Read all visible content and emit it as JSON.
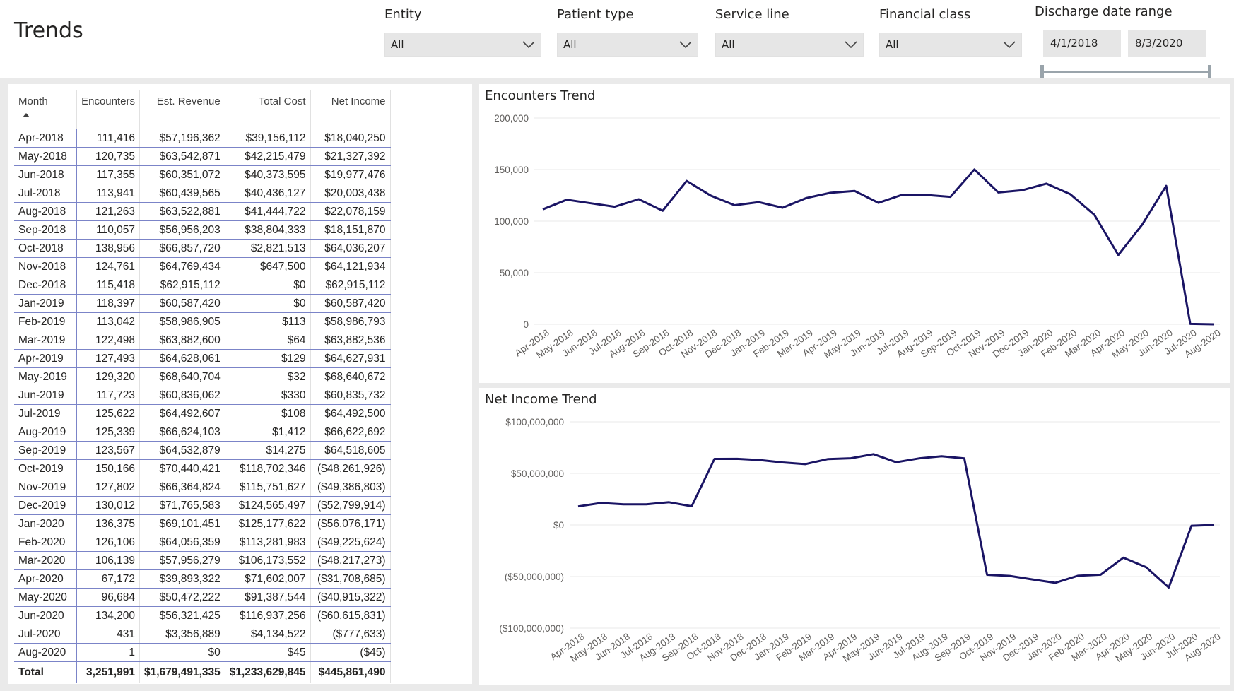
{
  "page": {
    "title": "Trends"
  },
  "filters": {
    "entity": {
      "label": "Entity",
      "value": "All"
    },
    "patient_type": {
      "label": "Patient type",
      "value": "All"
    },
    "service_line": {
      "label": "Service line",
      "value": "All"
    },
    "financial_class": {
      "label": "Financial class",
      "value": "All"
    },
    "discharge_date": {
      "label": "Discharge date range",
      "start": "4/1/2018",
      "end": "8/3/2020"
    }
  },
  "table": {
    "headers": [
      "Month",
      "Encounters",
      "Est. Revenue",
      "Total Cost",
      "Net Income"
    ],
    "rows": [
      [
        "Apr-2018",
        "111,416",
        "$57,196,362",
        "$39,156,112",
        "$18,040,250"
      ],
      [
        "May-2018",
        "120,735",
        "$63,542,871",
        "$42,215,479",
        "$21,327,392"
      ],
      [
        "Jun-2018",
        "117,355",
        "$60,351,072",
        "$40,373,595",
        "$19,977,476"
      ],
      [
        "Jul-2018",
        "113,941",
        "$60,439,565",
        "$40,436,127",
        "$20,003,438"
      ],
      [
        "Aug-2018",
        "121,263",
        "$63,522,881",
        "$41,444,722",
        "$22,078,159"
      ],
      [
        "Sep-2018",
        "110,057",
        "$56,956,203",
        "$38,804,333",
        "$18,151,870"
      ],
      [
        "Oct-2018",
        "138,956",
        "$66,857,720",
        "$2,821,513",
        "$64,036,207"
      ],
      [
        "Nov-2018",
        "124,761",
        "$64,769,434",
        "$647,500",
        "$64,121,934"
      ],
      [
        "Dec-2018",
        "115,418",
        "$62,915,112",
        "$0",
        "$62,915,112"
      ],
      [
        "Jan-2019",
        "118,397",
        "$60,587,420",
        "$0",
        "$60,587,420"
      ],
      [
        "Feb-2019",
        "113,042",
        "$58,986,905",
        "$113",
        "$58,986,793"
      ],
      [
        "Mar-2019",
        "122,498",
        "$63,882,600",
        "$64",
        "$63,882,536"
      ],
      [
        "Apr-2019",
        "127,493",
        "$64,628,061",
        "$129",
        "$64,627,931"
      ],
      [
        "May-2019",
        "129,320",
        "$68,640,704",
        "$32",
        "$68,640,672"
      ],
      [
        "Jun-2019",
        "117,723",
        "$60,836,062",
        "$330",
        "$60,835,732"
      ],
      [
        "Jul-2019",
        "125,622",
        "$64,492,607",
        "$108",
        "$64,492,500"
      ],
      [
        "Aug-2019",
        "125,339",
        "$66,624,103",
        "$1,412",
        "$66,622,692"
      ],
      [
        "Sep-2019",
        "123,567",
        "$64,532,879",
        "$14,275",
        "$64,518,605"
      ],
      [
        "Oct-2019",
        "150,166",
        "$70,440,421",
        "$118,702,346",
        "($48,261,926)"
      ],
      [
        "Nov-2019",
        "127,802",
        "$66,364,824",
        "$115,751,627",
        "($49,386,803)"
      ],
      [
        "Dec-2019",
        "130,012",
        "$71,765,583",
        "$124,565,497",
        "($52,799,914)"
      ],
      [
        "Jan-2020",
        "136,375",
        "$69,101,451",
        "$125,177,622",
        "($56,076,171)"
      ],
      [
        "Feb-2020",
        "126,106",
        "$64,056,359",
        "$113,281,983",
        "($49,225,624)"
      ],
      [
        "Mar-2020",
        "106,139",
        "$57,956,279",
        "$106,173,552",
        "($48,217,273)"
      ],
      [
        "Apr-2020",
        "67,172",
        "$39,893,322",
        "$71,602,007",
        "($31,708,685)"
      ],
      [
        "May-2020",
        "96,684",
        "$50,472,222",
        "$91,387,544",
        "($40,915,322)"
      ],
      [
        "Jun-2020",
        "134,200",
        "$56,321,425",
        "$116,937,256",
        "($60,615,831)"
      ],
      [
        "Jul-2020",
        "431",
        "$3,356,889",
        "$4,134,522",
        "($777,633)"
      ],
      [
        "Aug-2020",
        "1",
        "$0",
        "$45",
        "($45)"
      ]
    ],
    "total": [
      "Total",
      "3,251,991",
      "$1,679,491,335",
      "$1,233,629,845",
      "$445,861,490"
    ]
  },
  "chart_data": [
    {
      "type": "line",
      "title": "Encounters Trend",
      "categories": [
        "Apr-2018",
        "May-2018",
        "Jun-2018",
        "Jul-2018",
        "Aug-2018",
        "Sep-2018",
        "Oct-2018",
        "Nov-2018",
        "Dec-2018",
        "Jan-2019",
        "Feb-2019",
        "Mar-2019",
        "Apr-2019",
        "May-2019",
        "Jun-2019",
        "Jul-2019",
        "Aug-2019",
        "Sep-2019",
        "Oct-2019",
        "Nov-2019",
        "Dec-2019",
        "Jan-2020",
        "Feb-2020",
        "Mar-2020",
        "Apr-2020",
        "May-2020",
        "Jun-2020",
        "Jul-2020",
        "Aug-2020"
      ],
      "values": [
        111416,
        120735,
        117355,
        113941,
        121263,
        110057,
        138956,
        124761,
        115418,
        118397,
        113042,
        122498,
        127493,
        129320,
        117723,
        125622,
        125339,
        123567,
        150166,
        127802,
        130012,
        136375,
        126106,
        106139,
        67172,
        96684,
        134200,
        431,
        1
      ],
      "yticks": [
        "0",
        "50,000",
        "100,000",
        "150,000",
        "200,000"
      ],
      "ylim": [
        0,
        200000
      ],
      "grid": true,
      "color": "#1a1464"
    },
    {
      "type": "line",
      "title": "Net Income Trend",
      "categories": [
        "Apr-2018",
        "May-2018",
        "Jun-2018",
        "Jul-2018",
        "Aug-2018",
        "Sep-2018",
        "Oct-2018",
        "Nov-2018",
        "Dec-2018",
        "Jan-2019",
        "Feb-2019",
        "Mar-2019",
        "Apr-2019",
        "May-2019",
        "Jun-2019",
        "Jul-2019",
        "Aug-2019",
        "Sep-2019",
        "Oct-2019",
        "Nov-2019",
        "Dec-2019",
        "Jan-2020",
        "Feb-2020",
        "Mar-2020",
        "Apr-2020",
        "May-2020",
        "Jun-2020",
        "Jul-2020",
        "Aug-2020"
      ],
      "values": [
        18040250,
        21327392,
        19977476,
        20003438,
        22078159,
        18151870,
        64036207,
        64121934,
        62915112,
        60587420,
        58986793,
        63882536,
        64627931,
        68640672,
        60835732,
        64492500,
        66622692,
        64518605,
        -48261926,
        -49386803,
        -52799914,
        -56076171,
        -49225624,
        -48217273,
        -31708685,
        -40915322,
        -60615831,
        -777633,
        -45
      ],
      "yticks": [
        "($100,000,000)",
        "($50,000,000)",
        "$0",
        "$50,000,000",
        "$100,000,000"
      ],
      "ylim": [
        -100000000,
        100000000
      ],
      "grid": true,
      "color": "#1a1464"
    }
  ]
}
